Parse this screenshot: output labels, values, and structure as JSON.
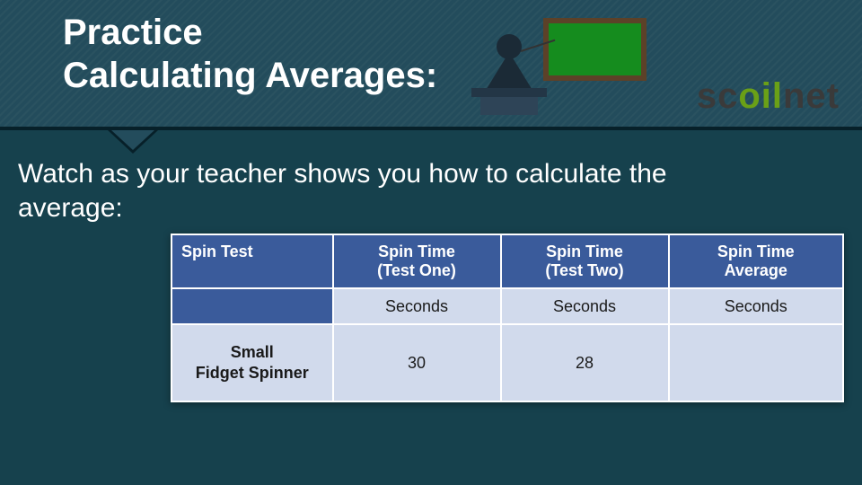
{
  "header": {
    "title_line1": "Practice",
    "title_line2": "Calculating Averages:",
    "logo_parts": {
      "sc": "sc",
      "oi": "oil",
      "rest": "net"
    },
    "background_color": "#234c5c",
    "text_color": "#ffffff"
  },
  "body_background": "#16414d",
  "subtitle": "Watch as your teacher shows you how to calculate the average:",
  "table": {
    "type": "table",
    "header_bg": "#3a5b9b",
    "header_text_color": "#ffffff",
    "cell_bg": "#d1daec",
    "cell_text_color": "#1a1a1a",
    "border_color": "#ffffff",
    "columns": [
      {
        "label": "Spin Test",
        "unit": ""
      },
      {
        "label": "Spin Time\n(Test One)",
        "unit": "Seconds"
      },
      {
        "label": "Spin Time\n(Test Two)",
        "unit": "Seconds"
      },
      {
        "label": "Spin Time\nAverage",
        "unit": "Seconds"
      }
    ],
    "rows": [
      {
        "label": "Small\nFidget Spinner",
        "values": [
          "30",
          "28",
          ""
        ]
      }
    ]
  },
  "teacher_icon": {
    "chalkboard_fill": "#158c1e",
    "chalkboard_frame": "#5c4128",
    "figure_color": "#1b2a36",
    "podium_color": "#2e4457"
  }
}
